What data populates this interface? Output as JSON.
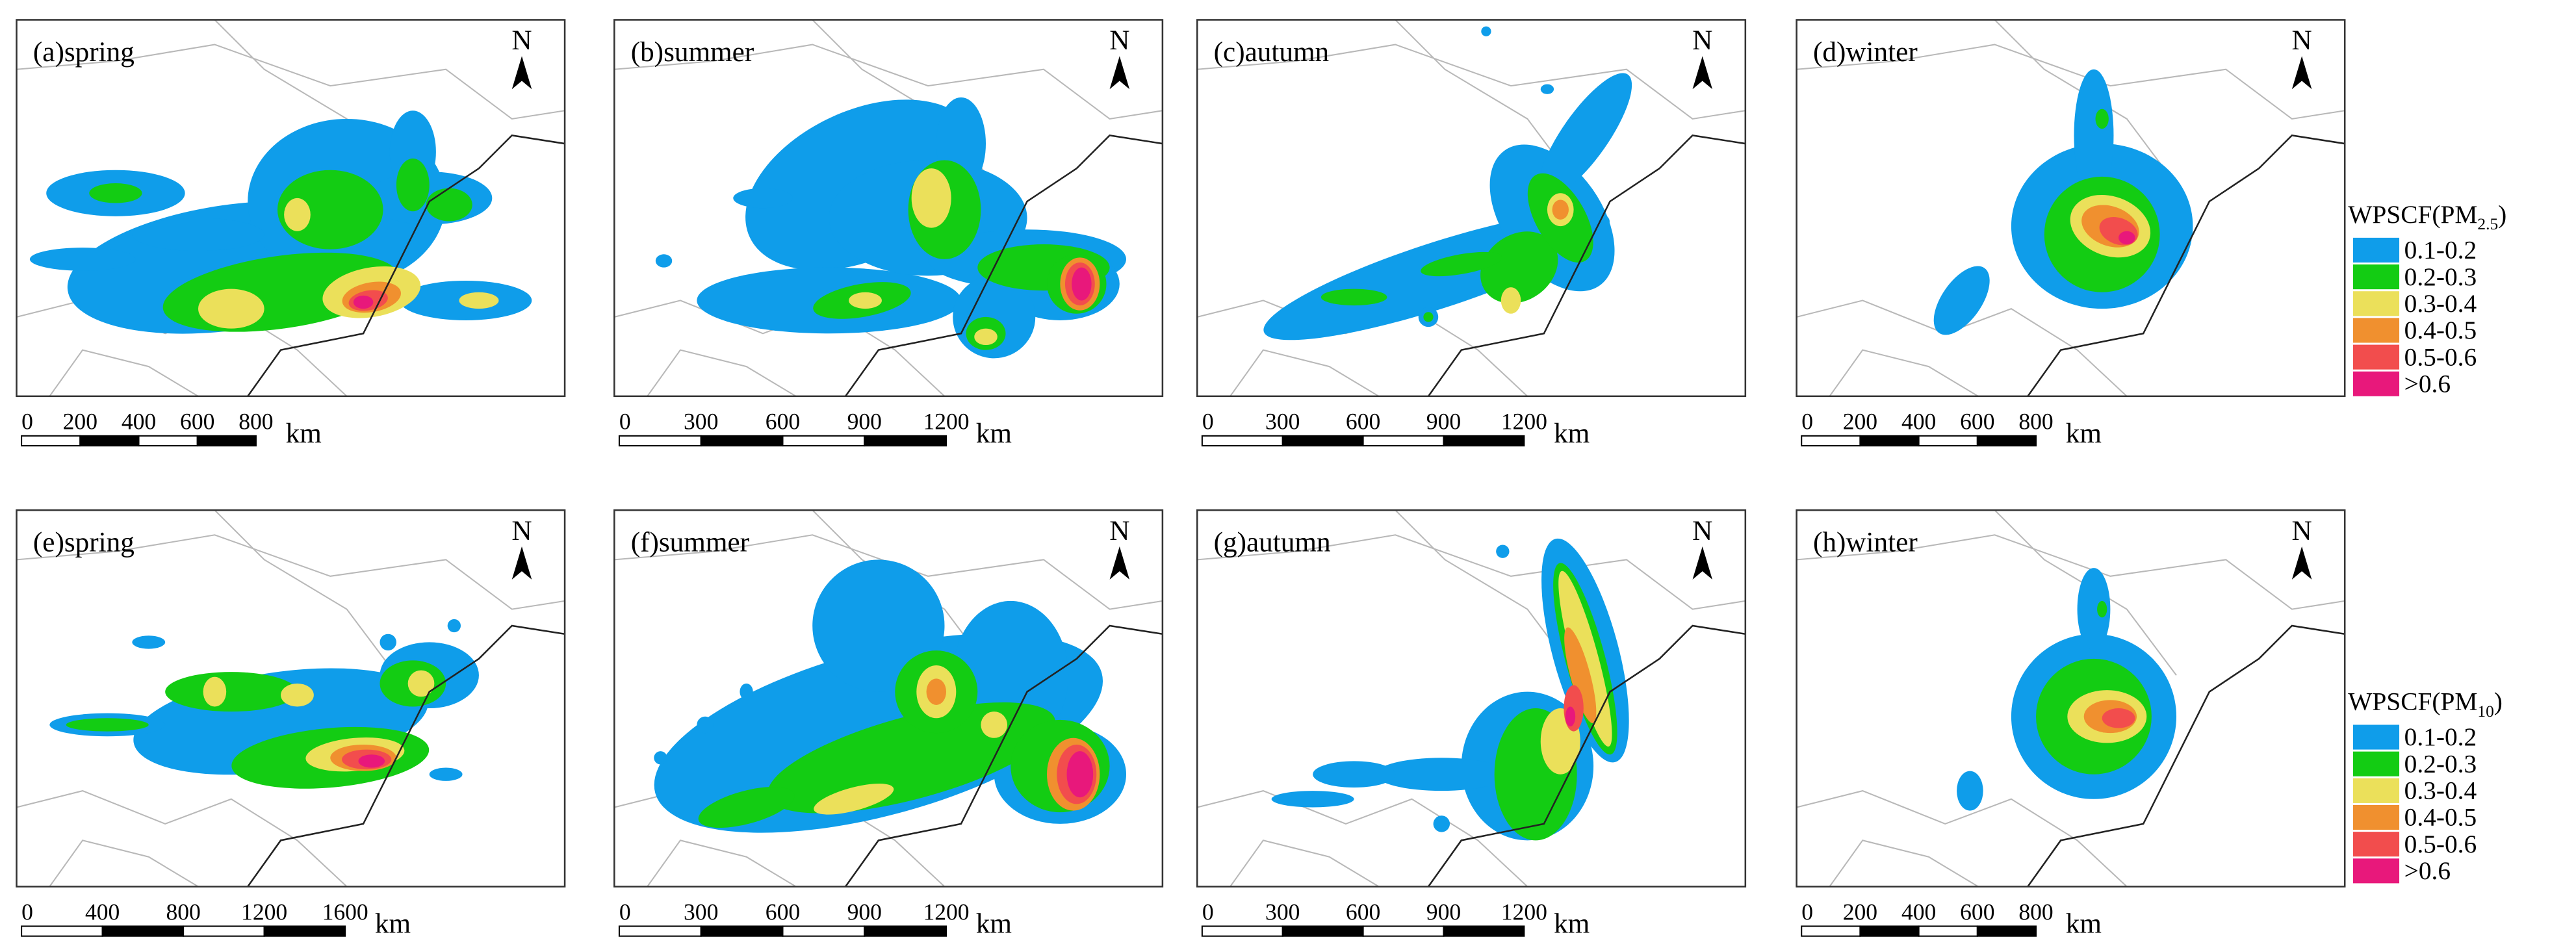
{
  "panels": [
    {
      "label": "(a)spring",
      "north": "N",
      "scale_ticks": [
        0,
        200,
        400,
        600,
        800
      ],
      "scale_unit": "km"
    },
    {
      "label": "(b)summer",
      "north": "N",
      "scale_ticks": [
        0,
        300,
        600,
        900,
        1200
      ],
      "scale_unit": "km"
    },
    {
      "label": "(c)autumn",
      "north": "N",
      "scale_ticks": [
        0,
        300,
        600,
        900,
        1200
      ],
      "scale_unit": "km"
    },
    {
      "label": "(d)winter",
      "north": "N",
      "scale_ticks": [
        0,
        200,
        400,
        600,
        800
      ],
      "scale_unit": "km"
    },
    {
      "label": "(e)spring",
      "north": "N",
      "scale_ticks": [
        0,
        400,
        800,
        1200,
        1600
      ],
      "scale_unit": "km"
    },
    {
      "label": "(f)summer",
      "north": "N",
      "scale_ticks": [
        0,
        300,
        600,
        900,
        1200
      ],
      "scale_unit": "km"
    },
    {
      "label": "(g)autumn",
      "north": "N",
      "scale_ticks": [
        0,
        300,
        600,
        900,
        1200
      ],
      "scale_unit": "km"
    },
    {
      "label": "(h)winter",
      "north": "N",
      "scale_ticks": [
        0,
        200,
        400,
        600,
        800
      ],
      "scale_unit": "km"
    }
  ],
  "legends": [
    {
      "title": "WPSCF(PM",
      "title_sub": "2.5",
      "title_end": ")",
      "classes": [
        {
          "label": "0.1-0.2",
          "color": "#0f9dea"
        },
        {
          "label": "0.2-0.3",
          "color": "#13cc13"
        },
        {
          "label": "0.3-0.4",
          "color": "#ebe05a"
        },
        {
          "label": "0.4-0.5",
          "color": "#f0902f"
        },
        {
          "label": "0.5-0.6",
          "color": "#f24d4d"
        },
        {
          "label": ">0.6",
          "color": "#e8187b"
        }
      ]
    },
    {
      "title": "WPSCF(PM",
      "title_sub": "10",
      "title_end": ")",
      "classes": [
        {
          "label": "0.1-0.2",
          "color": "#0f9dea"
        },
        {
          "label": "0.2-0.3",
          "color": "#13cc13"
        },
        {
          "label": "0.3-0.4",
          "color": "#ebe05a"
        },
        {
          "label": "0.4-0.5",
          "color": "#f0902f"
        },
        {
          "label": "0.5-0.6",
          "color": "#f24d4d"
        },
        {
          "label": ">0.6",
          "color": "#e8187b"
        }
      ]
    }
  ]
}
